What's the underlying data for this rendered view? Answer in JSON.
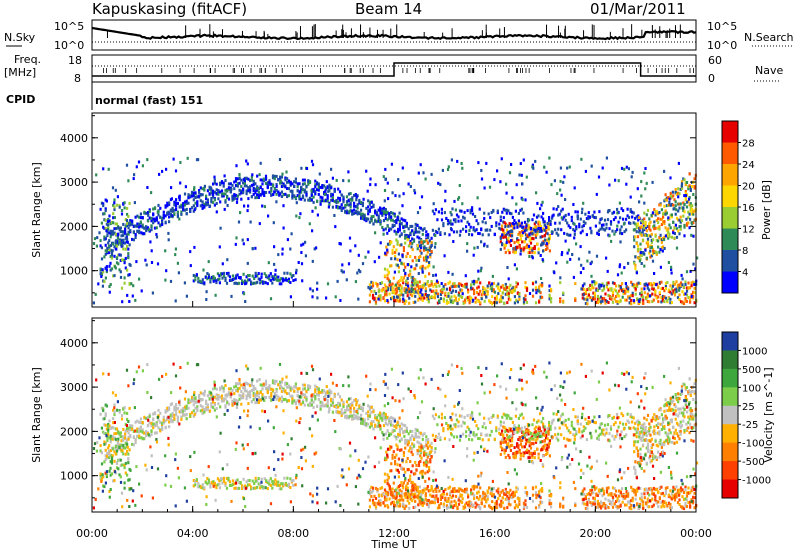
{
  "header": {
    "station": "Kapuskasing (fitACF)",
    "beam": "Beam 14",
    "date": "01/Mar/2011"
  },
  "noise_panel": {
    "left_label": "N.Sky",
    "right_label": "N.Search",
    "left_ticks": [
      "10^5",
      "10^0"
    ],
    "right_ticks": [
      "10^5",
      "10^0"
    ]
  },
  "freq_panel": {
    "left_label_1": "Freq.",
    "left_label_2": "[MHz]",
    "left_ticks": [
      "18",
      "8"
    ],
    "right_label": "Nave",
    "right_ticks": [
      "60",
      "0"
    ]
  },
  "cpid_panel": {
    "label": "CPID",
    "value": "normal (fast) 151"
  },
  "x_axis": {
    "label": "Time UT",
    "ticks": [
      "00:00",
      "04:00",
      "08:00",
      "12:00",
      "16:00",
      "20:00",
      "00:00"
    ]
  },
  "chart_data": [
    {
      "type": "heatmap",
      "name": "power",
      "ylabel": "Slant Range [km]",
      "yticks": [
        1000,
        2000,
        3000,
        4000
      ],
      "ylim": [
        180,
        4560
      ],
      "xlim_hours": [
        0,
        24
      ],
      "colorbar": {
        "label": "Power [dB]",
        "ticks": [
          "28",
          "24",
          "20",
          "16",
          "12",
          "8",
          "4"
        ],
        "colors": [
          "#e60000",
          "#ff5a00",
          "#ffa500",
          "#ffd700",
          "#9acd32",
          "#2e8b57",
          "#1e4fa0",
          "#0000ff"
        ]
      }
    },
    {
      "type": "heatmap",
      "name": "velocity",
      "ylabel": "Slant Range [km]",
      "yticks": [
        1000,
        2000,
        3000,
        4000
      ],
      "ylim": [
        180,
        4560
      ],
      "xlim_hours": [
        0,
        24
      ],
      "colorbar": {
        "label": "Velocity [m s^-1]",
        "ticks": [
          "1000",
          "500",
          "100",
          "25",
          "-25",
          "-100",
          "-500",
          "-1000"
        ],
        "colors": [
          "#1f3fa0",
          "#2e7d32",
          "#3da63d",
          "#7ccd4a",
          "#c0c0c0",
          "#ffb000",
          "#ff7f00",
          "#ff4000",
          "#e60000"
        ]
      }
    }
  ]
}
